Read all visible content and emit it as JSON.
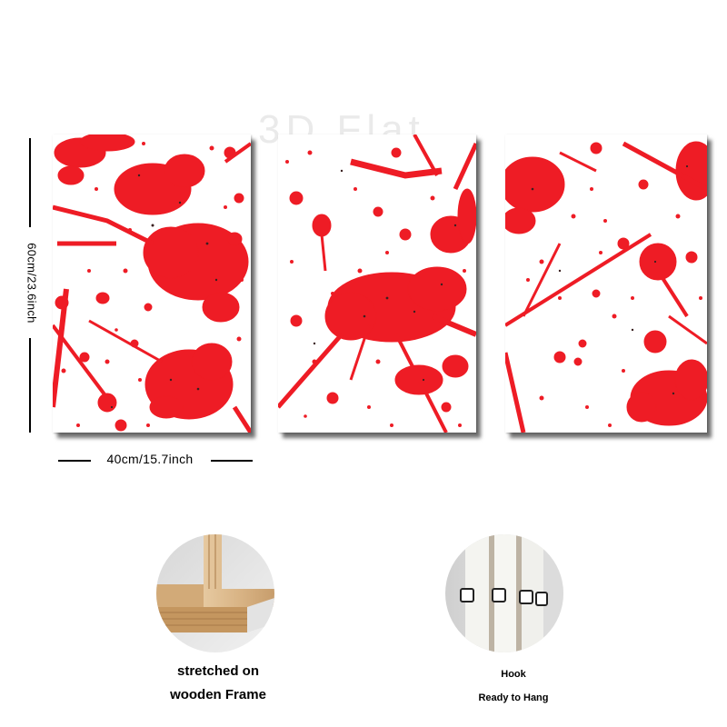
{
  "watermark": "3D Flat",
  "dimensions": {
    "height_label": "60cm/23.6inch",
    "width_label": "40cm/15.7inch"
  },
  "colors": {
    "paint_red": "#ee1c25",
    "speck_dark": "#3a2020"
  },
  "panels": [
    {
      "name": "left-panel"
    },
    {
      "name": "center-panel"
    },
    {
      "name": "right-panel"
    }
  ],
  "features": [
    {
      "caption_line1": "stretched on",
      "caption_line2": "wooden Frame",
      "icon": "wooden-frame-corner-photo"
    },
    {
      "caption_line1": "Hook",
      "caption_line2": "Ready to Hang",
      "icon": "hook-photo"
    }
  ]
}
